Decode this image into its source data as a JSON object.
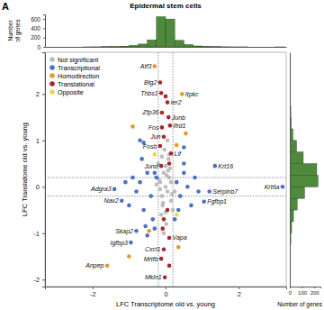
{
  "chart_data": [
    {
      "type": "scatter",
      "panel_label": "A",
      "title": "Epidermal stem cells",
      "xlabel": "LFC Transcriptome old vs. young",
      "ylabel": "LFC Translatome old vs. young",
      "xlim": [
        -3.3,
        3.3
      ],
      "xticks": [
        -2,
        0,
        2
      ],
      "ylim": [
        -2.15,
        2.9
      ],
      "yticks": [
        -2,
        -1,
        0,
        1,
        2
      ],
      "grid": false,
      "legend": "top-left",
      "marker": "circle",
      "cutoffs": {
        "x": [
          -0.2,
          0.2
        ],
        "y": [
          -0.2,
          0.2
        ]
      },
      "series": [
        {
          "name": "Not significant",
          "color": "#bdbdbd",
          "x": [
            -0.15,
            -0.1,
            -0.05,
            0,
            0.05,
            0.1,
            0.15,
            -0.2,
            0.2,
            -0.12,
            0.08,
            -0.03,
            0.02,
            0.12,
            -0.08,
            -0.18,
            0.18,
            0.05,
            -0.05,
            0.1,
            -0.1,
            0,
            0.15,
            -0.15,
            0.03,
            -0.25,
            0.25,
            -0.07,
            0.07,
            0
          ],
          "values": [
            0.1,
            -0.2,
            0.3,
            0,
            -0.1,
            0.2,
            -0.3,
            0.5,
            -0.5,
            -0.6,
            0.6,
            0.8,
            -0.8,
            0.4,
            -0.4,
            0.15,
            -0.15,
            1.0,
            -1.0,
            0.7,
            0.65,
            -0.55,
            0.1,
            -0.05,
            0.25,
            0.05,
            -0.1,
            -0.35,
            0.35,
            0.45
          ]
        },
        {
          "name": "Transcriptional",
          "color": "#4a72c4",
          "x": [
            3.2,
            1.35,
            1.2,
            1.05,
            -1.4,
            -1.2,
            -0.8,
            -0.95,
            -0.3,
            -0.4,
            -0.5,
            -0.6,
            -0.7,
            -0.35,
            -0.6,
            -0.55,
            -0.9,
            -1.0,
            -0.3,
            -0.65,
            -0.25,
            -0.8,
            -0.7,
            0.3,
            0.4,
            0.5,
            0.35,
            0.6,
            0.8,
            0.5,
            0.7,
            0.5,
            0.9,
            -1.1,
            -0.5,
            0.25
          ],
          "values": [
            0.0,
            0.45,
            -0.1,
            -0.32,
            -0.05,
            -0.3,
            -0.95,
            -1.2,
            0.3,
            -0.2,
            0.3,
            -0.5,
            0.1,
            -0.7,
            0.95,
            -0.85,
            0.2,
            -0.4,
            -0.9,
            0.6,
            0.2,
            -0.1,
            1.0,
            0.1,
            -0.2,
            0.3,
            -0.5,
            0.0,
            0.2,
            0.5,
            -0.4,
            0.85,
            -0.1,
            0.1,
            -1.05,
            -0.7
          ],
          "labels": [
            "Krt6a",
            "Krt16",
            "Serpinb7",
            "Fgfbp1",
            "Adgra3",
            "Nav2",
            "Skap2",
            "Igfbp3",
            null,
            null,
            null,
            null,
            null,
            null,
            null,
            null,
            null,
            null,
            null,
            null,
            null,
            null,
            null,
            null,
            null,
            null,
            null,
            null,
            null,
            null,
            null,
            null,
            null,
            null,
            null,
            null
          ]
        },
        {
          "name": "Homodirection",
          "color": "#e39a2d",
          "x": [
            -0.3,
            -1.6,
            0.45,
            -0.9,
            -0.45,
            0.35,
            0.3,
            -1.0,
            0.55
          ],
          "values": [
            2.6,
            -1.7,
            2.0,
            1.3,
            -0.95,
            -1.3,
            0.9,
            -1.5,
            1.15
          ],
          "labels": [
            "Atf3",
            "Anpep",
            "Itpkc",
            null,
            null,
            null,
            null,
            null,
            null
          ]
        },
        {
          "name": "Translational",
          "color": "#a8262b",
          "x": [
            -0.15,
            -0.12,
            0.05,
            -0.1,
            0.08,
            0.12,
            -0.1,
            -0.05,
            -0.15,
            0.15,
            -0.12,
            0.1,
            -0.05,
            -0.12,
            -0.02,
            0.05,
            -0.05,
            0.1,
            -0.08,
            0.0,
            0.1
          ],
          "values": [
            2.25,
            2.02,
            1.82,
            1.6,
            1.5,
            1.32,
            1.28,
            1.08,
            0.88,
            0.72,
            0.45,
            -1.1,
            -1.35,
            -1.55,
            -1.95,
            -0.5,
            -0.7,
            0.5,
            -0.9,
            1.95,
            -1.7
          ],
          "labels": [
            "Btg2",
            "Thbs1",
            "Ier2",
            "Zfp36",
            "Junb",
            "Ifrd1",
            "Fos",
            "Jun",
            "Fosb",
            "Lif",
            "Jund",
            "Vapa",
            "Cxcl1",
            "Mrtfb",
            "Mkln1",
            null,
            null,
            null,
            null,
            null,
            null
          ]
        },
        {
          "name": "Opposite",
          "color": "#e8d84a",
          "x": [
            0.3,
            -0.3
          ],
          "values": [
            -0.6,
            0.7
          ]
        }
      ]
    },
    {
      "type": "histogram",
      "color": "#4f8a3c",
      "ylabel": [
        "Number",
        "of genes"
      ],
      "xlim": [
        -3.3,
        3.3
      ],
      "ylim": [
        0,
        700
      ],
      "yticks": [
        0,
        200,
        400,
        600
      ],
      "tick_labels": "y",
      "bins": [
        -2.25,
        -2,
        -1.75,
        -1.5,
        -1.25,
        -1,
        -0.75,
        -0.5,
        -0.25,
        0,
        0.25,
        0.5,
        0.75,
        1,
        1.25,
        1.5,
        1.75,
        2,
        2.25,
        2.5,
        2.75,
        3,
        3.25
      ],
      "values": [
        1,
        2,
        5,
        8,
        15,
        30,
        60,
        150,
        650,
        600,
        140,
        50,
        20,
        10,
        5,
        3,
        1,
        1,
        0,
        0,
        0,
        1
      ]
    },
    {
      "type": "histogram",
      "orientation": "horizontal",
      "color": "#4f8a3c",
      "xlabel": "Number of genes",
      "xlim": [
        0,
        250
      ],
      "xticks": [
        0,
        100,
        200
      ],
      "ylim": [
        -2.15,
        2.9
      ],
      "tick_labels": "x",
      "bins": [
        -2.25,
        -2,
        -1.75,
        -1.5,
        -1.25,
        -1,
        -0.75,
        -0.5,
        -0.25,
        0,
        0.25,
        0.5,
        0.75,
        1,
        1.25,
        1.5,
        1.75,
        2,
        2.25,
        2.5,
        2.75
      ],
      "values": [
        1,
        1,
        2,
        4,
        8,
        15,
        30,
        60,
        120,
        230,
        220,
        110,
        55,
        25,
        12,
        8,
        5,
        3,
        2,
        1
      ]
    }
  ]
}
